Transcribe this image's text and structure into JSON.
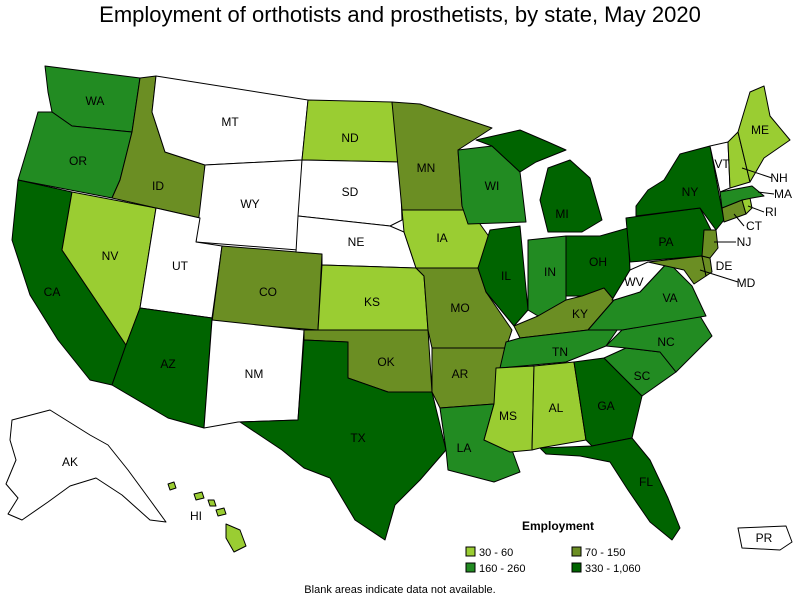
{
  "title": "Employment of orthotists and prosthetists, by state, May 2020",
  "note": "Blank areas indicate data not available.",
  "legend": {
    "title": "Employment",
    "bins": [
      {
        "label": "30 - 60",
        "color": "#9acd32"
      },
      {
        "label": "70 - 150",
        "color": "#6b8e23"
      },
      {
        "label": "160 - 260",
        "color": "#228b22"
      },
      {
        "label": "330 - 1,060",
        "color": "#006400"
      }
    ]
  },
  "colors": {
    "none": "#ffffff",
    "c1": "#9acd32",
    "c2": "#6b8e23",
    "c3": "#228b22",
    "c4": "#006400"
  },
  "states": [
    {
      "abbr": "WA",
      "bin": "c3"
    },
    {
      "abbr": "OR",
      "bin": "c3"
    },
    {
      "abbr": "CA",
      "bin": "c4"
    },
    {
      "abbr": "NV",
      "bin": "c1"
    },
    {
      "abbr": "ID",
      "bin": "c2"
    },
    {
      "abbr": "MT",
      "bin": "none"
    },
    {
      "abbr": "WY",
      "bin": "none"
    },
    {
      "abbr": "UT",
      "bin": "none"
    },
    {
      "abbr": "AZ",
      "bin": "c4"
    },
    {
      "abbr": "CO",
      "bin": "c2"
    },
    {
      "abbr": "NM",
      "bin": "none"
    },
    {
      "abbr": "ND",
      "bin": "c1"
    },
    {
      "abbr": "SD",
      "bin": "none"
    },
    {
      "abbr": "NE",
      "bin": "none"
    },
    {
      "abbr": "KS",
      "bin": "c1"
    },
    {
      "abbr": "OK",
      "bin": "c2"
    },
    {
      "abbr": "TX",
      "bin": "c4"
    },
    {
      "abbr": "MN",
      "bin": "c2"
    },
    {
      "abbr": "IA",
      "bin": "c1"
    },
    {
      "abbr": "MO",
      "bin": "c2"
    },
    {
      "abbr": "AR",
      "bin": "c2"
    },
    {
      "abbr": "LA",
      "bin": "c3"
    },
    {
      "abbr": "WI",
      "bin": "c3"
    },
    {
      "abbr": "IL",
      "bin": "c4"
    },
    {
      "abbr": "MI",
      "bin": "c4"
    },
    {
      "abbr": "IN",
      "bin": "c3"
    },
    {
      "abbr": "OH",
      "bin": "c4"
    },
    {
      "abbr": "KY",
      "bin": "c2"
    },
    {
      "abbr": "TN",
      "bin": "c3"
    },
    {
      "abbr": "MS",
      "bin": "c1"
    },
    {
      "abbr": "AL",
      "bin": "c1"
    },
    {
      "abbr": "GA",
      "bin": "c4"
    },
    {
      "abbr": "FL",
      "bin": "c4"
    },
    {
      "abbr": "SC",
      "bin": "c3"
    },
    {
      "abbr": "NC",
      "bin": "c3"
    },
    {
      "abbr": "VA",
      "bin": "c3"
    },
    {
      "abbr": "WV",
      "bin": "none"
    },
    {
      "abbr": "PA",
      "bin": "c4"
    },
    {
      "abbr": "NY",
      "bin": "c4"
    },
    {
      "abbr": "MD",
      "bin": "c2"
    },
    {
      "abbr": "DE",
      "bin": "c2"
    },
    {
      "abbr": "NJ",
      "bin": "c2"
    },
    {
      "abbr": "CT",
      "bin": "c2"
    },
    {
      "abbr": "RI",
      "bin": "c1"
    },
    {
      "abbr": "MA",
      "bin": "c3"
    },
    {
      "abbr": "VT",
      "bin": "none"
    },
    {
      "abbr": "NH",
      "bin": "c1"
    },
    {
      "abbr": "ME",
      "bin": "c1"
    },
    {
      "abbr": "AK",
      "bin": "none"
    },
    {
      "abbr": "HI",
      "bin": "c1"
    },
    {
      "abbr": "PR",
      "bin": "none"
    }
  ]
}
